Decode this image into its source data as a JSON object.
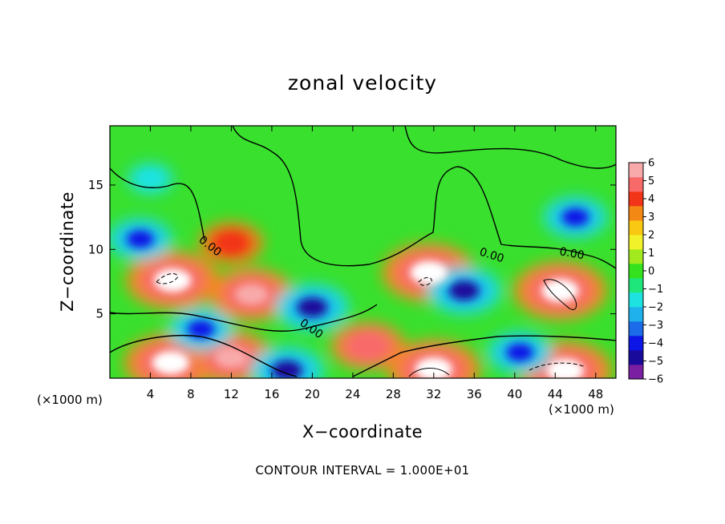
{
  "chart_data": {
    "type": "heatmap",
    "title": "zonal velocity",
    "xlabel": "X−coordinate",
    "ylabel": "Z−coordinate",
    "x_unit_left": "(×1000 m)",
    "x_unit_right": "(×1000 m)",
    "x_ticks": [
      4,
      8,
      12,
      16,
      20,
      24,
      28,
      32,
      36,
      40,
      44,
      48
    ],
    "y_ticks": [
      5,
      10,
      15
    ],
    "xlim": [
      0,
      50
    ],
    "ylim": [
      0,
      19.6
    ],
    "contour_labels": [
      "0.00",
      "0.00",
      "0.00",
      "0.00"
    ],
    "footer": "CONTOUR INTERVAL = 1.000E+01",
    "colorbar": {
      "ticks": [
        "6",
        "5",
        "4",
        "3",
        "2",
        "1",
        "0",
        "−1",
        "−2",
        "−3",
        "−4",
        "−5",
        "−6"
      ],
      "range": [
        -6,
        6
      ],
      "colors": [
        "#7a1fa2",
        "#1a0a9c",
        "#0d16e6",
        "#1c6be8",
        "#1fb1ec",
        "#1ee2e0",
        "#1fe67a",
        "#33e21c",
        "#a2ea1d",
        "#f2f22a",
        "#f8c812",
        "#f48814",
        "#f23418",
        "#f86a6a",
        "#f8aaaa"
      ]
    },
    "features": [
      {
        "kind": "max",
        "x": 6.2,
        "z": 7.6,
        "level": 7
      },
      {
        "kind": "max",
        "x": 31.5,
        "z": 8.2,
        "level": 7
      },
      {
        "kind": "max",
        "x": 44.5,
        "z": 6.8,
        "level": 7
      },
      {
        "kind": "max",
        "x": 6.0,
        "z": 1.2,
        "level": 7
      },
      {
        "kind": "max",
        "x": 45.0,
        "z": 0.6,
        "level": 7
      },
      {
        "kind": "max",
        "x": 32.0,
        "z": 0.7,
        "level": 7
      },
      {
        "kind": "max",
        "x": 14.0,
        "z": 6.5,
        "level": 6
      },
      {
        "kind": "max",
        "x": 12.0,
        "z": 1.6,
        "level": 6
      },
      {
        "kind": "max",
        "x": 25.5,
        "z": 2.5,
        "level": 5
      },
      {
        "kind": "max",
        "x": 12.0,
        "z": 10.5,
        "level": 4
      },
      {
        "kind": "min",
        "x": 3.0,
        "z": 10.8,
        "level": -4
      },
      {
        "kind": "min",
        "x": 46.0,
        "z": 12.5,
        "level": -4
      },
      {
        "kind": "min",
        "x": 35.0,
        "z": 6.8,
        "level": -5
      },
      {
        "kind": "min",
        "x": 20.0,
        "z": 5.5,
        "level": -5
      },
      {
        "kind": "min",
        "x": 9.0,
        "z": 3.8,
        "level": -4
      },
      {
        "kind": "min",
        "x": 17.5,
        "z": 0.6,
        "level": -5
      },
      {
        "kind": "min",
        "x": 40.5,
        "z": 2.0,
        "level": -4
      },
      {
        "kind": "min",
        "x": 4.0,
        "z": 15.5,
        "level": -2
      }
    ]
  }
}
